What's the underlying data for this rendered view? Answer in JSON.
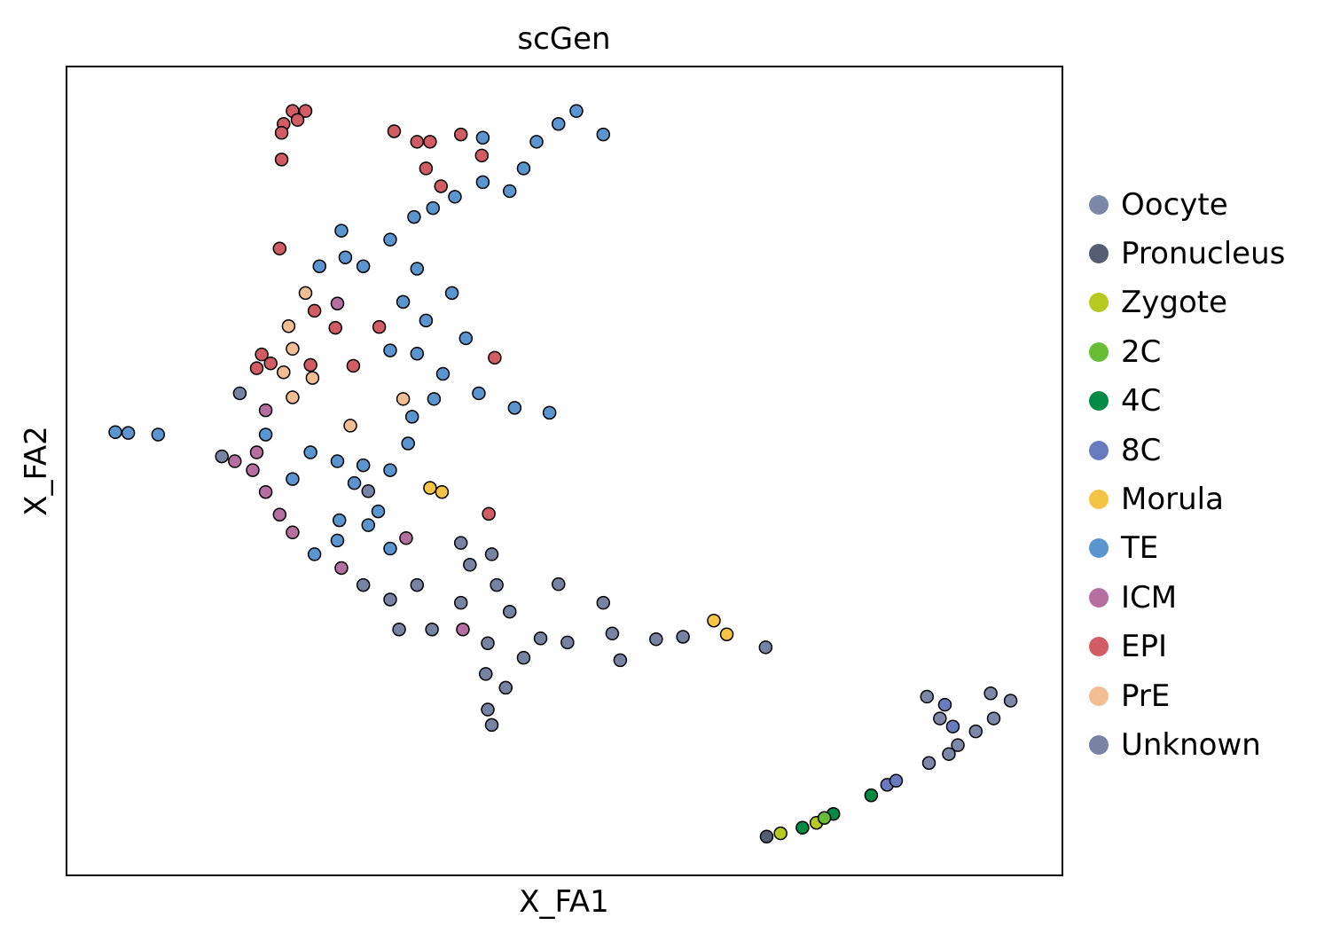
{
  "chart_data": {
    "type": "scatter",
    "title": "scGen",
    "xlabel": "X_FA1",
    "ylabel": "X_FA2",
    "xlim": [
      0,
      100
    ],
    "ylim": [
      0,
      100
    ],
    "grid": false,
    "legend_placement": "right-outside",
    "categories": [
      {
        "name": "Oocyte",
        "color": "#7d87a8"
      },
      {
        "name": "Pronucleus",
        "color": "#565e74"
      },
      {
        "name": "Zygote",
        "color": "#b5c920"
      },
      {
        "name": "2C",
        "color": "#68bc36"
      },
      {
        "name": "4C",
        "color": "#038b46"
      },
      {
        "name": "8C",
        "color": "#687bbf"
      },
      {
        "name": "Morula",
        "color": "#f5c344"
      },
      {
        "name": "TE",
        "color": "#5a95d0"
      },
      {
        "name": "ICM",
        "color": "#b46fa0"
      },
      {
        "name": "EPI",
        "color": "#d15c63"
      },
      {
        "name": "PrE",
        "color": "#f2bd93"
      },
      {
        "name": "Unknown",
        "color": "#7783a3"
      }
    ],
    "points": [
      [
        22.7,
        94.5,
        "EPI"
      ],
      [
        24.0,
        94.5,
        "EPI"
      ],
      [
        21.8,
        92.9,
        "EPI"
      ],
      [
        23.2,
        93.4,
        "EPI"
      ],
      [
        21.6,
        91.8,
        "EPI"
      ],
      [
        21.6,
        88.5,
        "EPI"
      ],
      [
        32.9,
        92.0,
        "EPI"
      ],
      [
        35.2,
        90.7,
        "EPI"
      ],
      [
        36.5,
        90.7,
        "EPI"
      ],
      [
        39.6,
        91.6,
        "EPI"
      ],
      [
        36.1,
        87.4,
        "EPI"
      ],
      [
        37.6,
        85.2,
        "EPI"
      ],
      [
        41.7,
        89.0,
        "EPI"
      ],
      [
        21.4,
        77.5,
        "EPI"
      ],
      [
        41.8,
        91.2,
        "TE"
      ],
      [
        41.8,
        85.7,
        "TE"
      ],
      [
        44.5,
        84.6,
        "TE"
      ],
      [
        45.9,
        87.4,
        "TE"
      ],
      [
        47.2,
        90.7,
        "TE"
      ],
      [
        49.4,
        92.9,
        "TE"
      ],
      [
        51.2,
        94.5,
        "TE"
      ],
      [
        53.9,
        91.6,
        "TE"
      ],
      [
        39.0,
        83.9,
        "TE"
      ],
      [
        36.8,
        82.5,
        "TE"
      ],
      [
        34.9,
        81.4,
        "TE"
      ],
      [
        27.6,
        79.7,
        "TE"
      ],
      [
        28.0,
        76.4,
        "TE"
      ],
      [
        25.4,
        75.3,
        "TE"
      ],
      [
        29.8,
        75.3,
        "TE"
      ],
      [
        32.5,
        78.6,
        "TE"
      ],
      [
        35.2,
        75.0,
        "TE"
      ],
      [
        33.8,
        70.9,
        "TE"
      ],
      [
        36.1,
        68.6,
        "TE"
      ],
      [
        38.7,
        72.0,
        "TE"
      ],
      [
        40.1,
        66.4,
        "TE"
      ],
      [
        37.8,
        62.0,
        "TE"
      ],
      [
        36.9,
        58.9,
        "TE"
      ],
      [
        41.4,
        59.6,
        "TE"
      ],
      [
        45.0,
        57.8,
        "TE"
      ],
      [
        48.5,
        57.2,
        "TE"
      ],
      [
        35.2,
        64.5,
        "TE"
      ],
      [
        32.5,
        64.9,
        "TE"
      ],
      [
        20.0,
        54.5,
        "TE"
      ],
      [
        24.5,
        52.3,
        "TE"
      ],
      [
        27.2,
        51.2,
        "TE"
      ],
      [
        29.8,
        50.7,
        "TE"
      ],
      [
        32.5,
        50.1,
        "TE"
      ],
      [
        34.3,
        53.4,
        "TE"
      ],
      [
        34.7,
        56.7,
        "TE"
      ],
      [
        22.7,
        49.0,
        "TE"
      ],
      [
        28.9,
        48.5,
        "TE"
      ],
      [
        4.9,
        54.8,
        "TE"
      ],
      [
        6.2,
        54.7,
        "TE"
      ],
      [
        9.2,
        54.5,
        "TE"
      ],
      [
        24.9,
        39.7,
        "TE"
      ],
      [
        27.2,
        41.4,
        "TE"
      ],
      [
        32.5,
        40.4,
        "TE"
      ],
      [
        27.4,
        43.9,
        "TE"
      ],
      [
        30.3,
        43.3,
        "TE"
      ],
      [
        31.3,
        45.0,
        "TE"
      ],
      [
        24.0,
        72.0,
        "PrE"
      ],
      [
        22.3,
        67.9,
        "PrE"
      ],
      [
        22.7,
        65.1,
        "PrE"
      ],
      [
        21.8,
        62.2,
        "PrE"
      ],
      [
        24.7,
        61.5,
        "PrE"
      ],
      [
        22.7,
        59.1,
        "PrE"
      ],
      [
        28.5,
        55.6,
        "PrE"
      ],
      [
        33.8,
        58.9,
        "PrE"
      ],
      [
        19.6,
        64.4,
        "EPI"
      ],
      [
        19.1,
        62.7,
        "EPI"
      ],
      [
        20.5,
        63.3,
        "EPI"
      ],
      [
        24.9,
        69.8,
        "EPI"
      ],
      [
        27.0,
        67.7,
        "EPI"
      ],
      [
        24.5,
        63.1,
        "EPI"
      ],
      [
        31.4,
        67.8,
        "EPI"
      ],
      [
        28.8,
        63.0,
        "EPI"
      ],
      [
        43.0,
        64.0,
        "EPI"
      ],
      [
        42.4,
        44.7,
        "EPI"
      ],
      [
        16.9,
        51.2,
        "ICM"
      ],
      [
        18.7,
        50.1,
        "ICM"
      ],
      [
        19.1,
        52.3,
        "ICM"
      ],
      [
        20.0,
        47.4,
        "ICM"
      ],
      [
        21.4,
        44.6,
        "ICM"
      ],
      [
        22.7,
        42.4,
        "ICM"
      ],
      [
        20.0,
        57.5,
        "ICM"
      ],
      [
        27.2,
        70.7,
        "ICM"
      ],
      [
        34.1,
        41.7,
        "ICM"
      ],
      [
        27.6,
        38.0,
        "ICM"
      ],
      [
        39.8,
        30.4,
        "ICM"
      ],
      [
        29.8,
        35.9,
        "Unknown"
      ],
      [
        32.5,
        34.1,
        "Unknown"
      ],
      [
        33.4,
        30.4,
        "Unknown"
      ],
      [
        35.2,
        35.9,
        "Unknown"
      ],
      [
        42.7,
        39.7,
        "Unknown"
      ],
      [
        43.2,
        35.9,
        "Unknown"
      ],
      [
        44.5,
        32.6,
        "Unknown"
      ],
      [
        42.3,
        28.7,
        "Unknown"
      ],
      [
        42.1,
        24.9,
        "Unknown"
      ],
      [
        42.3,
        20.5,
        "Unknown"
      ],
      [
        42.7,
        18.6,
        "Unknown"
      ],
      [
        39.6,
        41.1,
        "Unknown"
      ],
      [
        40.5,
        38.4,
        "Unknown"
      ],
      [
        49.4,
        36.0,
        "Unknown"
      ],
      [
        53.9,
        33.7,
        "Unknown"
      ],
      [
        54.8,
        29.9,
        "Unknown"
      ],
      [
        50.3,
        28.8,
        "Unknown"
      ],
      [
        47.6,
        29.3,
        "Unknown"
      ],
      [
        55.6,
        26.6,
        "Unknown"
      ],
      [
        59.2,
        29.2,
        "Unknown"
      ],
      [
        61.9,
        29.5,
        "Unknown"
      ],
      [
        70.2,
        28.2,
        "Unknown"
      ],
      [
        45.9,
        26.9,
        "Unknown"
      ],
      [
        44.1,
        23.2,
        "Unknown"
      ],
      [
        39.6,
        33.7,
        "Unknown"
      ],
      [
        36.7,
        30.4,
        "Unknown"
      ],
      [
        17.4,
        59.6,
        "Unknown"
      ],
      [
        15.6,
        51.8,
        "Unknown"
      ],
      [
        30.3,
        47.5,
        "Unknown"
      ],
      [
        86.4,
        22.1,
        "Oocyte"
      ],
      [
        87.7,
        19.4,
        "Oocyte"
      ],
      [
        89.5,
        16.1,
        "Oocyte"
      ],
      [
        91.3,
        17.8,
        "Oocyte"
      ],
      [
        93.1,
        19.4,
        "Oocyte"
      ],
      [
        94.8,
        21.6,
        "Oocyte"
      ],
      [
        92.8,
        22.5,
        "Oocyte"
      ],
      [
        86.6,
        13.9,
        "Oocyte"
      ],
      [
        88.6,
        15.0,
        "Oocyte"
      ],
      [
        88.2,
        21.1,
        "8C"
      ],
      [
        89.0,
        18.4,
        "8C"
      ],
      [
        82.4,
        11.2,
        "8C"
      ],
      [
        83.3,
        11.7,
        "8C"
      ],
      [
        77.0,
        7.6,
        "4C"
      ],
      [
        73.9,
        5.9,
        "4C"
      ],
      [
        80.8,
        9.9,
        "4C"
      ],
      [
        71.7,
        5.2,
        "Zygote"
      ],
      [
        75.3,
        6.5,
        "Zygote"
      ],
      [
        76.1,
        7.1,
        "2C"
      ],
      [
        70.3,
        4.8,
        "Pronucleus"
      ],
      [
        65.0,
        31.5,
        "Morula"
      ],
      [
        66.3,
        29.8,
        "Morula"
      ],
      [
        36.5,
        47.9,
        "Morula"
      ],
      [
        37.7,
        47.4,
        "Morula"
      ]
    ]
  }
}
